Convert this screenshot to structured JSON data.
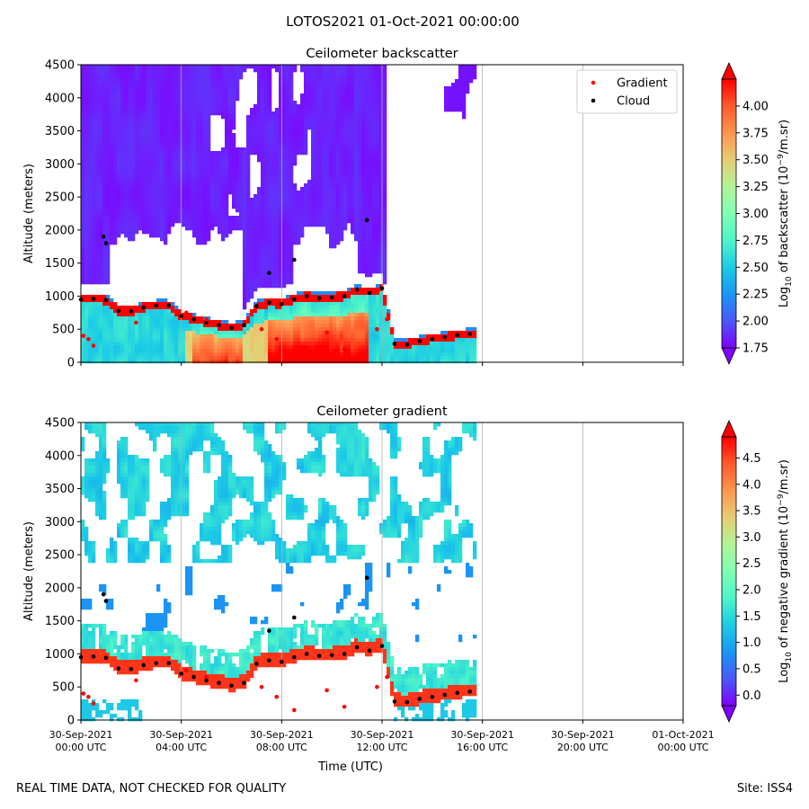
{
  "suptitle": "LOTOS2021 01-Oct-2021 00:00:00",
  "footer": {
    "left": "REAL TIME DATA, NOT CHECKED FOR QUALITY",
    "right": "Site: ISS4"
  },
  "colors": {
    "rainbow_stops": [
      "#8000ff",
      "#4a59f7",
      "#1996f3",
      "#1ccce5",
      "#4ff4c7",
      "#80ffb4",
      "#b2f396",
      "#e6cd73",
      "#ff954e",
      "#ff5a2b",
      "#ff0000"
    ],
    "gradient_marker": "#ff0000",
    "cloud_marker": "#000000",
    "grid": "#b0b0b0"
  },
  "chart_data": [
    {
      "type": "heatmap",
      "title": "Ceilometer backscatter",
      "ylabel": "Altitude (meters)",
      "xlabel": "",
      "xlim": [
        "2021-09-30T00:00",
        "2021-10-01T00:00"
      ],
      "ylim": [
        0,
        4500
      ],
      "yticks": [
        0,
        500,
        1000,
        1500,
        2000,
        2500,
        3000,
        3500,
        4000,
        4500
      ],
      "xticks": [
        "2021-09-30T00:00",
        "2021-09-30T04:00",
        "2021-09-30T08:00",
        "2021-09-30T12:00",
        "2021-09-30T16:00",
        "2021-09-30T20:00",
        "2021-10-01T00:00"
      ],
      "xtick_labels": [
        "",
        "",
        "",
        "",
        "",
        "",
        ""
      ],
      "grid": "vertical",
      "data_end": "2021-09-30T15:45",
      "colorbar": {
        "label": "Log10 of backscatter (10^-9/m.sr)",
        "label_main": "Log",
        "label_sub": "10",
        "label_mid": " of backscatter (10",
        "label_sup": "−9",
        "label_end": "/m.sr)",
        "min": 1.75,
        "max": 4.25,
        "ticks": [
          "1.75",
          "2.00",
          "2.25",
          "2.50",
          "2.75",
          "3.00",
          "3.25",
          "3.50",
          "3.75",
          "4.00"
        ],
        "extend": "both"
      },
      "legend": {
        "placement": "upper right",
        "entries": [
          "Gradient",
          "Cloud"
        ]
      },
      "series": [
        {
          "name": "Cloud",
          "x_hours": [
            0.0,
            0.5,
            1.0,
            1.5,
            2.0,
            2.5,
            3.0,
            3.5,
            4.0,
            4.5,
            5.0,
            5.5,
            6.0,
            6.5,
            7.0,
            7.5,
            8.0,
            8.5,
            9.0,
            9.5,
            10.0,
            10.5,
            11.0,
            11.5,
            12.0,
            12.5,
            13.0,
            13.5,
            14.0,
            14.5,
            15.0,
            15.5
          ],
          "y": [
            950,
            960,
            940,
            780,
            770,
            830,
            860,
            860,
            700,
            650,
            600,
            560,
            520,
            560,
            850,
            900,
            880,
            950,
            1000,
            970,
            980,
            1000,
            1100,
            1050,
            1120,
            280,
            270,
            320,
            350,
            380,
            410,
            430
          ]
        },
        {
          "name": "Gradient",
          "x_hours": [
            0.1,
            0.3,
            0.5,
            2.2,
            4.2,
            5.0,
            7.2,
            7.8,
            8.5,
            9.8,
            10.5,
            11.8,
            12.2
          ],
          "y": [
            400,
            350,
            250,
            600,
            750,
            650,
            500,
            350,
            150,
            450,
            200,
            500,
            650
          ]
        },
        {
          "name": "Cloud (elevated)",
          "x_hours": [
            0.9,
            1.0,
            7.5,
            8.5,
            11.4
          ],
          "y": [
            1900,
            1800,
            1350,
            1550,
            2150
          ]
        }
      ]
    },
    {
      "type": "heatmap",
      "title": "Ceilometer gradient",
      "ylabel": "Altitude (meters)",
      "xlabel": "Time (UTC)",
      "xlim": [
        "2021-09-30T00:00",
        "2021-10-01T00:00"
      ],
      "ylim": [
        0,
        4500
      ],
      "yticks": [
        0,
        500,
        1000,
        1500,
        2000,
        2500,
        3000,
        3500,
        4000,
        4500
      ],
      "xticks": [
        "2021-09-30T00:00",
        "2021-09-30T04:00",
        "2021-09-30T08:00",
        "2021-09-30T12:00",
        "2021-09-30T16:00",
        "2021-09-30T20:00",
        "2021-10-01T00:00"
      ],
      "xtick_labels": [
        [
          "30-Sep-2021",
          "00:00 UTC"
        ],
        [
          "30-Sep-2021",
          "04:00 UTC"
        ],
        [
          "30-Sep-2021",
          "08:00 UTC"
        ],
        [
          "30-Sep-2021",
          "12:00 UTC"
        ],
        [
          "30-Sep-2021",
          "16:00 UTC"
        ],
        [
          "30-Sep-2021",
          "20:00 UTC"
        ],
        [
          "01-Oct-2021",
          "00:00 UTC"
        ]
      ],
      "grid": "vertical",
      "data_end": "2021-09-30T15:45",
      "colorbar": {
        "label": "Log10 of negative gradient (10^-9/m.sr)",
        "label_main": "Log",
        "label_sub": "10",
        "label_mid": " of negative gradient (10",
        "label_sup": "−9",
        "label_end": "/m.sr)",
        "min": -0.2,
        "max": 4.9,
        "ticks": [
          "0.0",
          "0.5",
          "1.0",
          "1.5",
          "2.0",
          "2.5",
          "3.0",
          "3.5",
          "4.0",
          "4.5"
        ],
        "extend": "both"
      },
      "series": [
        {
          "name": "Cloud",
          "x_hours": [
            0.0,
            0.5,
            1.0,
            1.5,
            2.0,
            2.5,
            3.0,
            3.5,
            4.0,
            4.5,
            5.0,
            5.5,
            6.0,
            6.5,
            7.0,
            7.5,
            8.0,
            8.5,
            9.0,
            9.5,
            10.0,
            10.5,
            11.0,
            11.5,
            12.0,
            12.5,
            13.0,
            13.5,
            14.0,
            14.5,
            15.0,
            15.5
          ],
          "y": [
            950,
            960,
            940,
            780,
            770,
            830,
            860,
            860,
            700,
            650,
            600,
            560,
            520,
            560,
            850,
            900,
            880,
            950,
            1000,
            970,
            980,
            1000,
            1100,
            1050,
            1120,
            280,
            270,
            320,
            350,
            380,
            410,
            430
          ]
        },
        {
          "name": "Gradient",
          "x_hours": [
            0.1,
            0.3,
            0.5,
            2.2,
            4.2,
            5.0,
            7.2,
            7.8,
            8.5,
            9.8,
            10.5,
            11.8,
            12.2
          ],
          "y": [
            400,
            350,
            250,
            600,
            750,
            650,
            500,
            350,
            150,
            450,
            200,
            500,
            650
          ]
        },
        {
          "name": "Cloud (elevated)",
          "x_hours": [
            0.9,
            1.0,
            7.5,
            8.5,
            11.4
          ],
          "y": [
            1900,
            1800,
            1350,
            1550,
            2150
          ]
        }
      ]
    }
  ]
}
